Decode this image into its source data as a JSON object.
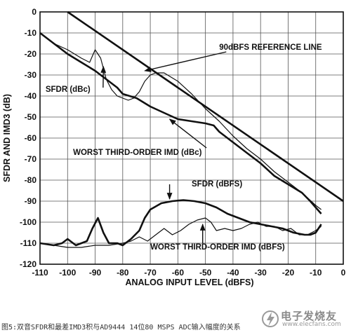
{
  "chart_data": {
    "type": "line",
    "xlabel": "ANALOG INPUT LEVEL (dBFS)",
    "ylabel": "SFDR AND IMD3 (dB)",
    "xlim": [
      -110,
      0
    ],
    "ylim": [
      -120,
      0
    ],
    "xticks": [
      -110,
      -100,
      -90,
      -80,
      -70,
      -60,
      -50,
      -40,
      -30,
      -20,
      -10,
      0
    ],
    "yticks": [
      0,
      -10,
      -20,
      -30,
      -40,
      -50,
      -60,
      -70,
      -80,
      -90,
      -100,
      -110,
      -120
    ],
    "grid": true,
    "series": [
      {
        "name": "90dBFS REFERENCE LINE",
        "style": "thick",
        "x": [
          -100,
          0
        ],
        "y": [
          0,
          -90
        ]
      },
      {
        "name": "SFDR (dBc)",
        "style": "thin",
        "x": [
          -110,
          -105,
          -100,
          -95,
          -92,
          -90,
          -88,
          -86,
          -84,
          -82,
          -80,
          -78,
          -76,
          -74,
          -72,
          -70,
          -68,
          -65,
          -60,
          -55,
          -50,
          -45,
          -40,
          -35,
          -30,
          -25,
          -20,
          -15,
          -10,
          -8
        ],
        "y": [
          -10,
          -15,
          -18,
          -22,
          -24,
          -18,
          -22,
          -32,
          -37,
          -40,
          -41,
          -42,
          -41,
          -38,
          -33,
          -30,
          -29,
          -29,
          -33,
          -39,
          -46,
          -52,
          -59,
          -65,
          -70,
          -76,
          -81,
          -86,
          -92,
          -94
        ]
      },
      {
        "name": "WORST THIRD-ORDER IMD (dBc)",
        "style": "thick",
        "x": [
          -110,
          -105,
          -100,
          -95,
          -90,
          -85,
          -82,
          -80,
          -75,
          -70,
          -65,
          -60,
          -55,
          -50,
          -47,
          -45,
          -40,
          -35,
          -30,
          -25,
          -20,
          -15,
          -12,
          -10,
          -8
        ],
        "y": [
          -10,
          -15,
          -20,
          -24,
          -28,
          -33,
          -36,
          -39,
          -41,
          -45,
          -48,
          -51,
          -52,
          -53,
          -54,
          -57,
          -62,
          -67,
          -72,
          -78,
          -82,
          -86,
          -90,
          -93,
          -96
        ]
      },
      {
        "name": "SFDR (dBFS)",
        "style": "thick",
        "x": [
          -110,
          -105,
          -102,
          -100,
          -97,
          -93,
          -91,
          -89,
          -87,
          -85,
          -82,
          -80,
          -77,
          -74,
          -72,
          -70,
          -66,
          -62,
          -58,
          -54,
          -50,
          -46,
          -42,
          -38,
          -34,
          -30,
          -26,
          -22,
          -18,
          -14,
          -12,
          -10,
          -8
        ],
        "y": [
          -110,
          -111,
          -110,
          -108,
          -111,
          -109,
          -103,
          -98,
          -105,
          -110,
          -110,
          -111,
          -108,
          -104,
          -98,
          -94,
          -91,
          -90,
          -89.5,
          -90,
          -91,
          -93,
          -96,
          -98,
          -100,
          -101,
          -102,
          -103,
          -105,
          -106,
          -106,
          -105,
          -101
        ]
      },
      {
        "name": "WORST THIRD-ORDER IMD (dBFS)",
        "style": "thin",
        "x": [
          -110,
          -105,
          -100,
          -95,
          -90,
          -85,
          -80,
          -77,
          -74,
          -71,
          -68,
          -65,
          -62,
          -59,
          -56,
          -53,
          -50,
          -48,
          -46,
          -43,
          -40,
          -37,
          -34,
          -31,
          -28,
          -25,
          -22,
          -19,
          -16,
          -13,
          -10,
          -8
        ],
        "y": [
          -110,
          -111,
          -112,
          -112,
          -111,
          -111,
          -110,
          -109,
          -107,
          -109,
          -106,
          -103,
          -106,
          -104,
          -101,
          -99,
          -98,
          -100,
          -104,
          -103,
          -104,
          -103,
          -101,
          -100,
          -102,
          -102,
          -104,
          -103,
          -106,
          -106,
          -104,
          -102
        ]
      }
    ],
    "annotations": [
      {
        "text": "90dBFS REFERENCE LINE",
        "at": [
          -45,
          -18
        ],
        "arrow_to": [
          -72,
          -28
        ]
      },
      {
        "text": "SFDR (dBc)",
        "at": [
          -108,
          -38
        ],
        "arrow_to": [
          -87,
          -26
        ]
      },
      {
        "text": "WORST THIRD-ORDER IMD (dBc)",
        "at": [
          -98,
          -68
        ],
        "arrow_to": [
          -63,
          -51
        ]
      },
      {
        "text": "SFDR (dBFS)",
        "at": [
          -55,
          -83
        ],
        "arrow_from_x": -63,
        "arrow_y_start": -82,
        "arrow_y_end": -89
      },
      {
        "text": "WORST THIRD-ORDER IMD (dBFS)",
        "at": [
          -70,
          -113
        ],
        "arrow_from_x": -51,
        "arrow_y_start": -110,
        "arrow_y_end": -101
      }
    ]
  },
  "caption": "图5:双音SFDR和最差IMD3积与AD9444 14位80 MSPS ADC输入幅度的关系",
  "watermark": {
    "text": "电子发烧友",
    "url": "www.elecfans.com"
  }
}
